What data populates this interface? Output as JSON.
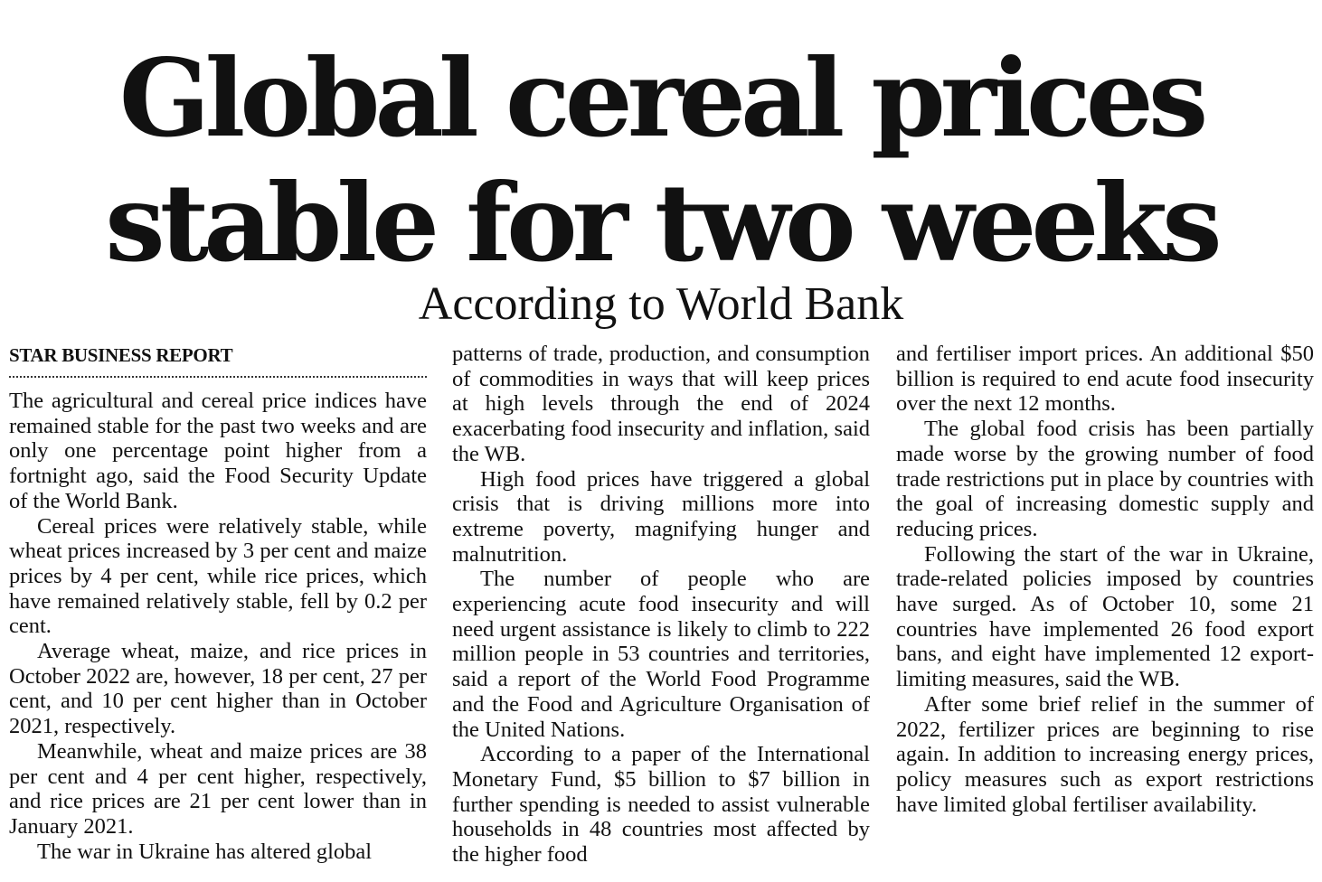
{
  "headline": {
    "line1": "Global cereal prices",
    "line2": "stable for two weeks"
  },
  "deck": "According to World Bank",
  "byline": "STAR BUSINESS REPORT",
  "columns": {
    "col1": [
      "The agricultural and cereal price indices have remained stable for the past two weeks and are only one percentage point higher from a fortnight ago, said the Food Security Update of the World Bank.",
      "Cereal prices were relatively stable, while wheat prices increased by 3 per cent and maize prices by 4 per cent, while rice prices, which have remained relatively stable, fell by 0.2 per cent.",
      "Average wheat, maize, and rice prices in October 2022 are, however, 18 per cent, 27 per cent, and 10 per cent higher than in October 2021, respectively.",
      "Meanwhile, wheat and maize prices are 38 per cent and 4 per cent higher, respectively, and rice prices are 21 per cent lower than in January 2021.",
      "The war in Ukraine has altered global"
    ],
    "col2": [
      "patterns of trade, production, and consumption of commodities in ways that will keep prices at high levels through the end of 2024 exacerbating food insecurity and inflation, said the WB.",
      "High food prices have triggered a global crisis that is driving millions more into extreme poverty, magnifying hunger and malnutrition.",
      "The number of people who are experiencing acute food insecurity and will need urgent assistance is likely to climb to 222 million people in 53 countries and territories, said a report of the World Food Programme and the Food and Agriculture Organisation of the United Nations.",
      "According to a paper of the International Monetary Fund, $5 billion to $7 billion in further spending is needed to assist vulnerable households in 48 countries most affected by the higher food"
    ],
    "col3": [
      "and fertiliser import prices. An additional $50 billion is required to end acute food insecurity over the next 12 months.",
      "The global food crisis has been partially made worse by the growing number of food trade restrictions put in place by countries with the goal of increasing domestic supply and reducing prices.",
      "Following the start of the war in Ukraine, trade-related policies imposed by countries have surged. As of October 10, some 21 countries have implemented 26 food export bans, and eight have implemented 12 export-limiting measures, said the WB.",
      "After some brief relief in the summer of 2022, fertilizer prices are beginning to rise again. In addition to increasing energy prices, policy measures such as export restrictions have limited global fertiliser availability."
    ]
  }
}
